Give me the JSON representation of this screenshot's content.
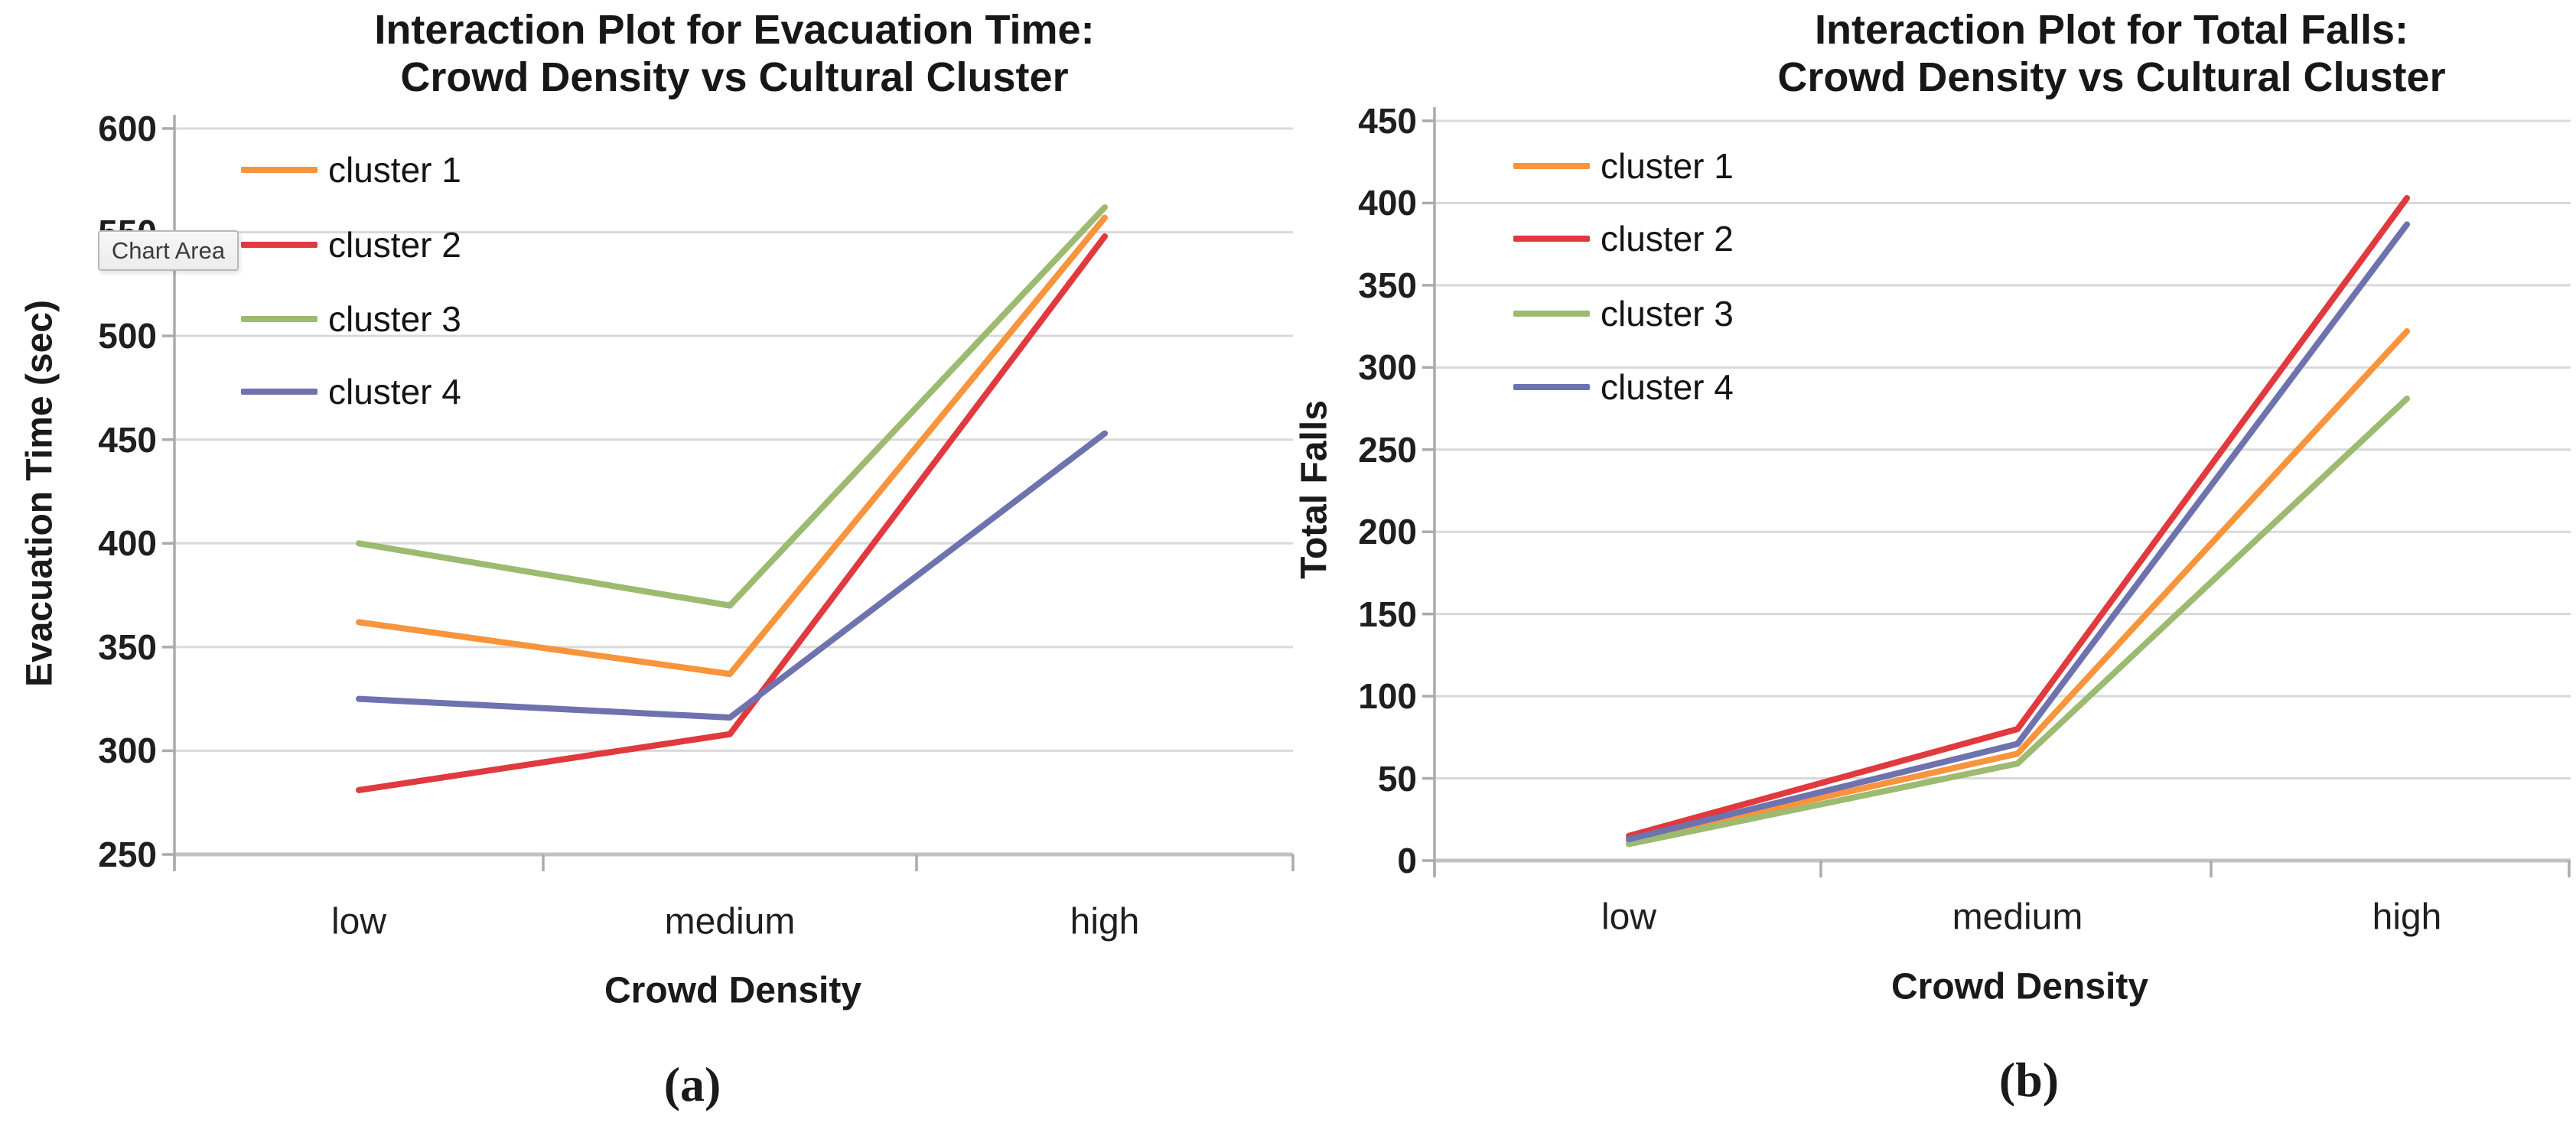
{
  "page": {
    "background": "#ffffff"
  },
  "colors": {
    "series_orange": "#F7943C",
    "series_red": "#E0393E",
    "series_green": "#9CBA70",
    "series_blue": "#6E72AE",
    "gridline": "#D9D9D9",
    "axis": "#ABABAB",
    "text": "#1A1A1A"
  },
  "tooltip": {
    "label": "Chart Area"
  },
  "chart_data": [
    {
      "type": "line",
      "title": "Interaction Plot for Evacuation Time:",
      "subtitle": "Crowd Density vs Cultural Cluster",
      "xlabel": "Crowd Density",
      "ylabel": "Evacuation Time (sec)",
      "caption": "(a)",
      "categories": [
        "low",
        "medium",
        "high"
      ],
      "series": [
        {
          "name": "cluster 1",
          "color": "#F7943C",
          "values": [
            362,
            337,
            557
          ]
        },
        {
          "name": "cluster 2",
          "color": "#E0393E",
          "values": [
            281,
            308,
            548
          ]
        },
        {
          "name": "cluster 3",
          "color": "#9CBA70",
          "values": [
            400,
            370,
            562
          ]
        },
        {
          "name": "cluster 4",
          "color": "#6E72AE",
          "values": [
            325,
            316,
            453
          ]
        }
      ],
      "ylim": [
        250,
        600
      ],
      "ytick_step": 50,
      "yticks": [
        250,
        300,
        350,
        400,
        450,
        500,
        550,
        600
      ],
      "grid": true,
      "legend_position": "inside-top-left"
    },
    {
      "type": "line",
      "title": "Interaction Plot for Total Falls:",
      "subtitle": "Crowd Density vs Cultural Cluster",
      "xlabel": "Crowd Density",
      "ylabel": "Total Falls",
      "caption": "(b)",
      "categories": [
        "low",
        "medium",
        "high"
      ],
      "series": [
        {
          "name": "cluster 1",
          "color": "#F7943C",
          "values": [
            12,
            65,
            322
          ]
        },
        {
          "name": "cluster 2",
          "color": "#E0393E",
          "values": [
            15,
            80,
            403
          ]
        },
        {
          "name": "cluster 3",
          "color": "#9CBA70",
          "values": [
            10,
            59,
            281
          ]
        },
        {
          "name": "cluster 4",
          "color": "#6E72AE",
          "values": [
            13,
            71,
            387
          ]
        }
      ],
      "ylim": [
        0,
        450
      ],
      "ytick_step": 50,
      "yticks": [
        0,
        50,
        100,
        150,
        200,
        250,
        300,
        350,
        400,
        450
      ],
      "grid": true,
      "legend_position": "inside-top-left"
    }
  ]
}
